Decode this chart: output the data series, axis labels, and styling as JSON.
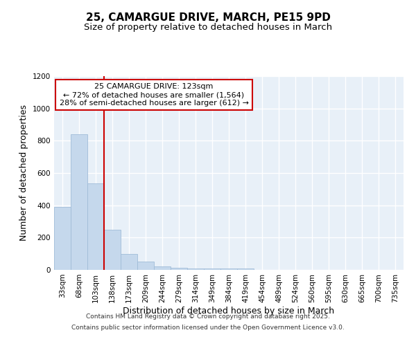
{
  "title_line1": "25, CAMARGUE DRIVE, MARCH, PE15 9PD",
  "title_line2": "Size of property relative to detached houses in March",
  "xlabel": "Distribution of detached houses by size in March",
  "ylabel": "Number of detached properties",
  "categories": [
    "33sqm",
    "68sqm",
    "103sqm",
    "138sqm",
    "173sqm",
    "209sqm",
    "244sqm",
    "279sqm",
    "314sqm",
    "349sqm",
    "384sqm",
    "419sqm",
    "454sqm",
    "489sqm",
    "524sqm",
    "560sqm",
    "595sqm",
    "630sqm",
    "665sqm",
    "700sqm",
    "735sqm"
  ],
  "values": [
    390,
    840,
    535,
    248,
    98,
    52,
    20,
    14,
    10,
    8,
    8,
    8,
    0,
    0,
    0,
    0,
    0,
    0,
    0,
    0,
    0
  ],
  "bar_color": "#c5d8ec",
  "bar_edge_color": "#a0bcd8",
  "background_color": "#e8f0f8",
  "grid_color": "#ffffff",
  "vline_x_index": 2.5,
  "vline_color": "#cc0000",
  "annotation_text": "25 CAMARGUE DRIVE: 123sqm\n← 72% of detached houses are smaller (1,564)\n28% of semi-detached houses are larger (612) →",
  "annotation_box_color": "#ffffff",
  "annotation_box_edge": "#cc0000",
  "ylim": [
    0,
    1200
  ],
  "yticks": [
    0,
    200,
    400,
    600,
    800,
    1000,
    1200
  ],
  "footer1": "Contains HM Land Registry data © Crown copyright and database right 2025.",
  "footer2": "Contains public sector information licensed under the Open Government Licence v3.0.",
  "title_fontsize": 11,
  "subtitle_fontsize": 9.5,
  "axis_label_fontsize": 9,
  "tick_fontsize": 7.5,
  "annotation_fontsize": 8,
  "footer_fontsize": 6.5,
  "fig_bg": "#ffffff"
}
